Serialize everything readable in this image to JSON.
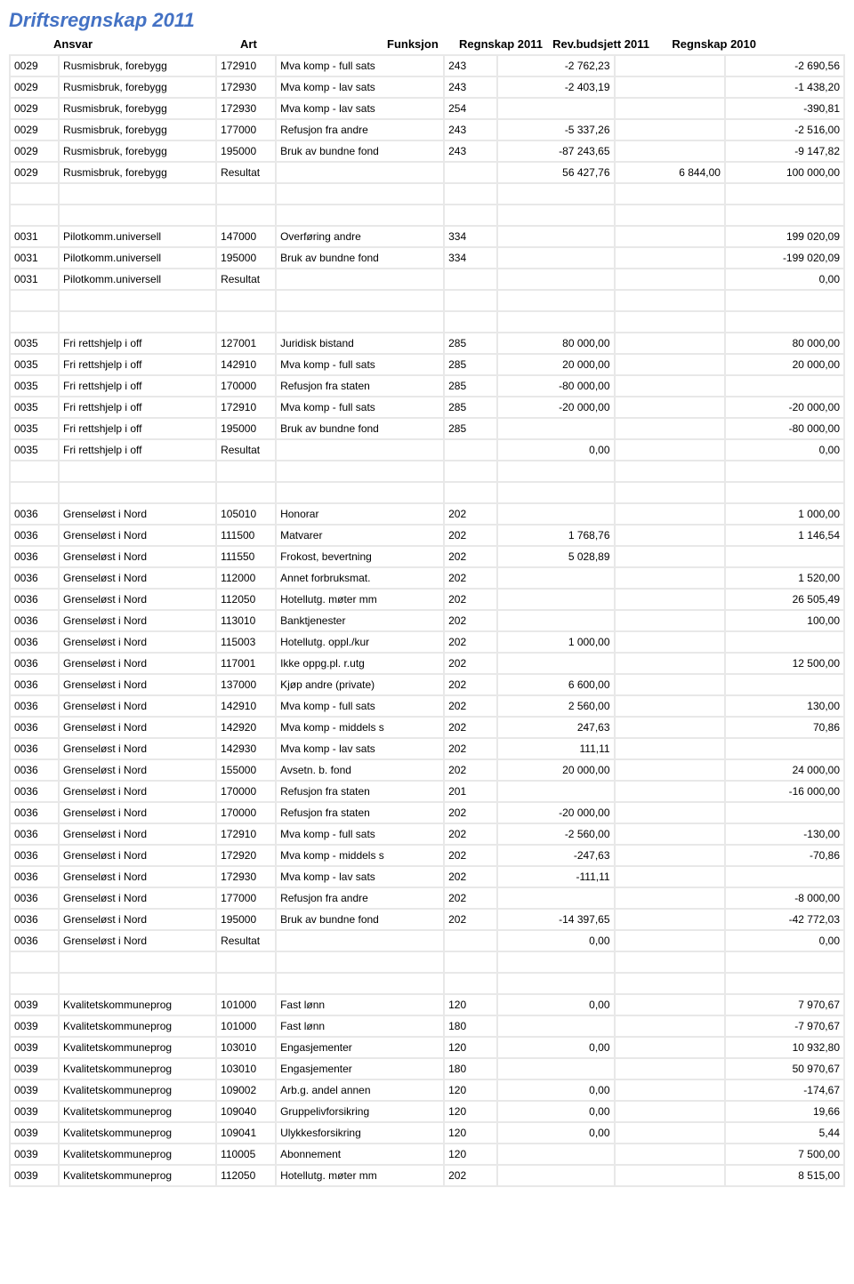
{
  "title": "Driftsregnskap 2011",
  "headers": {
    "ansvar": "Ansvar",
    "art": "Art",
    "funksjon": "Funksjon",
    "r2011": "Regnskap 2011",
    "rev": "Rev.budsjett 2011",
    "r2010": "Regnskap 2010"
  },
  "rows": [
    {
      "a": "0029",
      "at": "Rusmisbruk, forebygg",
      "ar": "172910",
      "art": "Mva komp - full sats",
      "f": "243",
      "r1": "-2 762,23",
      "rv": "",
      "r0": "-2 690,56"
    },
    {
      "a": "0029",
      "at": "Rusmisbruk, forebygg",
      "ar": "172930",
      "art": "Mva komp - lav sats",
      "f": "243",
      "r1": "-2 403,19",
      "rv": "",
      "r0": "-1 438,20"
    },
    {
      "a": "0029",
      "at": "Rusmisbruk, forebygg",
      "ar": "172930",
      "art": "Mva komp - lav sats",
      "f": "254",
      "r1": "",
      "rv": "",
      "r0": "-390,81"
    },
    {
      "a": "0029",
      "at": "Rusmisbruk, forebygg",
      "ar": "177000",
      "art": "Refusjon fra andre",
      "f": "243",
      "r1": "-5 337,26",
      "rv": "",
      "r0": "-2 516,00"
    },
    {
      "a": "0029",
      "at": "Rusmisbruk, forebygg",
      "ar": "195000",
      "art": "Bruk av bundne fond",
      "f": "243",
      "r1": "-87 243,65",
      "rv": "",
      "r0": "-9 147,82"
    },
    {
      "a": "0029",
      "at": "Rusmisbruk, forebygg",
      "ar": "Resultat",
      "art": "",
      "f": "",
      "r1": "56 427,76",
      "rv": "6 844,00",
      "r0": "100 000,00"
    },
    {
      "spacer": true
    },
    {
      "spacer": true
    },
    {
      "a": "0031",
      "at": "Pilotkomm.universell",
      "ar": "147000",
      "art": "Overføring andre",
      "f": "334",
      "r1": "",
      "rv": "",
      "r0": "199 020,09"
    },
    {
      "a": "0031",
      "at": "Pilotkomm.universell",
      "ar": "195000",
      "art": "Bruk av bundne fond",
      "f": "334",
      "r1": "",
      "rv": "",
      "r0": "-199 020,09"
    },
    {
      "a": "0031",
      "at": "Pilotkomm.universell",
      "ar": "Resultat",
      "art": "",
      "f": "",
      "r1": "",
      "rv": "",
      "r0": "0,00"
    },
    {
      "spacer": true
    },
    {
      "spacer": true
    },
    {
      "a": "0035",
      "at": "Fri rettshjelp i off",
      "ar": "127001",
      "art": "Juridisk bistand",
      "f": "285",
      "r1": "80 000,00",
      "rv": "",
      "r0": "80 000,00"
    },
    {
      "a": "0035",
      "at": "Fri rettshjelp i off",
      "ar": "142910",
      "art": "Mva komp - full sats",
      "f": "285",
      "r1": "20 000,00",
      "rv": "",
      "r0": "20 000,00"
    },
    {
      "a": "0035",
      "at": "Fri rettshjelp i off",
      "ar": "170000",
      "art": "Refusjon fra staten",
      "f": "285",
      "r1": "-80 000,00",
      "rv": "",
      "r0": ""
    },
    {
      "a": "0035",
      "at": "Fri rettshjelp i off",
      "ar": "172910",
      "art": "Mva komp - full sats",
      "f": "285",
      "r1": "-20 000,00",
      "rv": "",
      "r0": "-20 000,00"
    },
    {
      "a": "0035",
      "at": "Fri rettshjelp i off",
      "ar": "195000",
      "art": "Bruk av bundne fond",
      "f": "285",
      "r1": "",
      "rv": "",
      "r0": "-80 000,00"
    },
    {
      "a": "0035",
      "at": "Fri rettshjelp i off",
      "ar": "Resultat",
      "art": "",
      "f": "",
      "r1": "0,00",
      "rv": "",
      "r0": "0,00"
    },
    {
      "spacer": true
    },
    {
      "spacer": true
    },
    {
      "a": "0036",
      "at": "Grenseløst i Nord",
      "ar": "105010",
      "art": "Honorar",
      "f": "202",
      "r1": "",
      "rv": "",
      "r0": "1 000,00"
    },
    {
      "a": "0036",
      "at": "Grenseløst i Nord",
      "ar": "111500",
      "art": "Matvarer",
      "f": "202",
      "r1": "1 768,76",
      "rv": "",
      "r0": "1 146,54"
    },
    {
      "a": "0036",
      "at": "Grenseløst i Nord",
      "ar": "111550",
      "art": "Frokost, bevertning",
      "f": "202",
      "r1": "5 028,89",
      "rv": "",
      "r0": ""
    },
    {
      "a": "0036",
      "at": "Grenseløst i Nord",
      "ar": "112000",
      "art": "Annet forbruksmat.",
      "f": "202",
      "r1": "",
      "rv": "",
      "r0": "1 520,00"
    },
    {
      "a": "0036",
      "at": "Grenseløst i Nord",
      "ar": "112050",
      "art": "Hotellutg. møter mm",
      "f": "202",
      "r1": "",
      "rv": "",
      "r0": "26 505,49"
    },
    {
      "a": "0036",
      "at": "Grenseløst i Nord",
      "ar": "113010",
      "art": "Banktjenester",
      "f": "202",
      "r1": "",
      "rv": "",
      "r0": "100,00"
    },
    {
      "a": "0036",
      "at": "Grenseløst i Nord",
      "ar": "115003",
      "art": "Hotellutg. oppl./kur",
      "f": "202",
      "r1": "1 000,00",
      "rv": "",
      "r0": ""
    },
    {
      "a": "0036",
      "at": "Grenseløst i Nord",
      "ar": "117001",
      "art": "Ikke oppg.pl. r.utg",
      "f": "202",
      "r1": "",
      "rv": "",
      "r0": "12 500,00"
    },
    {
      "a": "0036",
      "at": "Grenseløst i Nord",
      "ar": "137000",
      "art": "Kjøp andre (private)",
      "f": "202",
      "r1": "6 600,00",
      "rv": "",
      "r0": ""
    },
    {
      "a": "0036",
      "at": "Grenseløst i Nord",
      "ar": "142910",
      "art": "Mva komp - full sats",
      "f": "202",
      "r1": "2 560,00",
      "rv": "",
      "r0": "130,00"
    },
    {
      "a": "0036",
      "at": "Grenseløst i Nord",
      "ar": "142920",
      "art": "Mva komp - middels s",
      "f": "202",
      "r1": "247,63",
      "rv": "",
      "r0": "70,86"
    },
    {
      "a": "0036",
      "at": "Grenseløst i Nord",
      "ar": "142930",
      "art": "Mva komp - lav sats",
      "f": "202",
      "r1": "111,11",
      "rv": "",
      "r0": ""
    },
    {
      "a": "0036",
      "at": "Grenseløst i Nord",
      "ar": "155000",
      "art": "Avsetn. b. fond",
      "f": "202",
      "r1": "20 000,00",
      "rv": "",
      "r0": "24 000,00"
    },
    {
      "a": "0036",
      "at": "Grenseløst i Nord",
      "ar": "170000",
      "art": "Refusjon fra staten",
      "f": "201",
      "r1": "",
      "rv": "",
      "r0": "-16 000,00"
    },
    {
      "a": "0036",
      "at": "Grenseløst i Nord",
      "ar": "170000",
      "art": "Refusjon fra staten",
      "f": "202",
      "r1": "-20 000,00",
      "rv": "",
      "r0": ""
    },
    {
      "a": "0036",
      "at": "Grenseløst i Nord",
      "ar": "172910",
      "art": "Mva komp - full sats",
      "f": "202",
      "r1": "-2 560,00",
      "rv": "",
      "r0": "-130,00"
    },
    {
      "a": "0036",
      "at": "Grenseløst i Nord",
      "ar": "172920",
      "art": "Mva komp - middels s",
      "f": "202",
      "r1": "-247,63",
      "rv": "",
      "r0": "-70,86"
    },
    {
      "a": "0036",
      "at": "Grenseløst i Nord",
      "ar": "172930",
      "art": "Mva komp - lav sats",
      "f": "202",
      "r1": "-111,11",
      "rv": "",
      "r0": ""
    },
    {
      "a": "0036",
      "at": "Grenseløst i Nord",
      "ar": "177000",
      "art": "Refusjon fra andre",
      "f": "202",
      "r1": "",
      "rv": "",
      "r0": "-8 000,00"
    },
    {
      "a": "0036",
      "at": "Grenseløst i Nord",
      "ar": "195000",
      "art": "Bruk av bundne fond",
      "f": "202",
      "r1": "-14 397,65",
      "rv": "",
      "r0": "-42 772,03"
    },
    {
      "a": "0036",
      "at": "Grenseløst i Nord",
      "ar": "Resultat",
      "art": "",
      "f": "",
      "r1": "0,00",
      "rv": "",
      "r0": "0,00"
    },
    {
      "spacer": true
    },
    {
      "spacer": true
    },
    {
      "a": "0039",
      "at": "Kvalitetskommuneprog",
      "ar": "101000",
      "art": "Fast lønn",
      "f": "120",
      "r1": "0,00",
      "rv": "",
      "r0": "7 970,67"
    },
    {
      "a": "0039",
      "at": "Kvalitetskommuneprog",
      "ar": "101000",
      "art": "Fast lønn",
      "f": "180",
      "r1": "",
      "rv": "",
      "r0": "-7 970,67"
    },
    {
      "a": "0039",
      "at": "Kvalitetskommuneprog",
      "ar": "103010",
      "art": "Engasjementer",
      "f": "120",
      "r1": "0,00",
      "rv": "",
      "r0": "10 932,80"
    },
    {
      "a": "0039",
      "at": "Kvalitetskommuneprog",
      "ar": "103010",
      "art": "Engasjementer",
      "f": "180",
      "r1": "",
      "rv": "",
      "r0": "50 970,67"
    },
    {
      "a": "0039",
      "at": "Kvalitetskommuneprog",
      "ar": "109002",
      "art": "Arb.g. andel annen",
      "f": "120",
      "r1": "0,00",
      "rv": "",
      "r0": "-174,67"
    },
    {
      "a": "0039",
      "at": "Kvalitetskommuneprog",
      "ar": "109040",
      "art": "Gruppelivforsikring",
      "f": "120",
      "r1": "0,00",
      "rv": "",
      "r0": "19,66"
    },
    {
      "a": "0039",
      "at": "Kvalitetskommuneprog",
      "ar": "109041",
      "art": "Ulykkesforsikring",
      "f": "120",
      "r1": "0,00",
      "rv": "",
      "r0": "5,44"
    },
    {
      "a": "0039",
      "at": "Kvalitetskommuneprog",
      "ar": "110005",
      "art": "Abonnement",
      "f": "120",
      "r1": "",
      "rv": "",
      "r0": "7 500,00"
    },
    {
      "a": "0039",
      "at": "Kvalitetskommuneprog",
      "ar": "112050",
      "art": "Hotellutg. møter mm",
      "f": "202",
      "r1": "",
      "rv": "",
      "r0": "8 515,00"
    }
  ]
}
